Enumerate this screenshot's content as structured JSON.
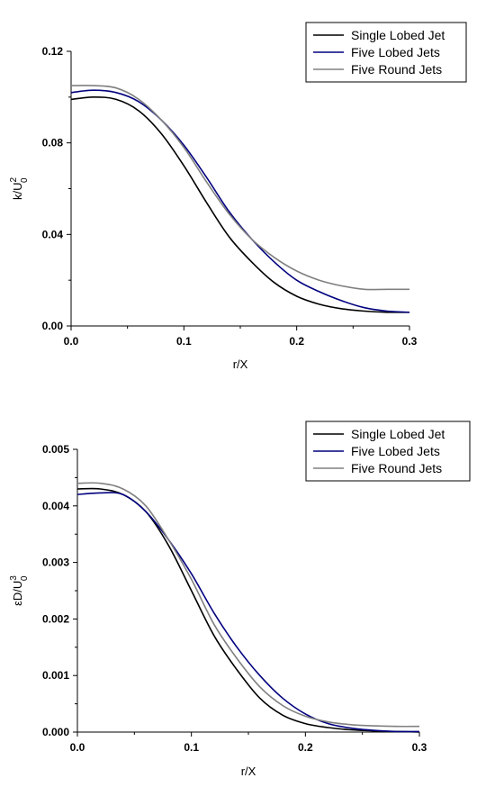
{
  "chart_data": [
    {
      "type": "line",
      "xlabel": "r/X",
      "ylabel_main": "k/U",
      "ylabel_sup": "2",
      "ylabel_sub": "0",
      "xlim": [
        0.0,
        0.3
      ],
      "ylim": [
        0.0,
        0.12
      ],
      "xticks": [
        0.0,
        0.1,
        0.2,
        0.3
      ],
      "xtick_labels": [
        "0.0",
        "0.1",
        "0.2",
        "0.3"
      ],
      "yticks": [
        0.0,
        0.04,
        0.08,
        0.12
      ],
      "ytick_labels": [
        "0.00",
        "0.04",
        "0.08",
        "0.12"
      ],
      "legend_position": "top-right",
      "grid": false,
      "series": [
        {
          "name": "Single Lobed Jet",
          "color": "#000000",
          "points": [
            [
              0.0,
              0.099
            ],
            [
              0.02,
              0.1
            ],
            [
              0.04,
              0.099
            ],
            [
              0.06,
              0.094
            ],
            [
              0.08,
              0.084
            ],
            [
              0.1,
              0.07
            ],
            [
              0.12,
              0.054
            ],
            [
              0.14,
              0.039
            ],
            [
              0.16,
              0.028
            ],
            [
              0.18,
              0.019
            ],
            [
              0.2,
              0.013
            ],
            [
              0.22,
              0.0095
            ],
            [
              0.24,
              0.0075
            ],
            [
              0.26,
              0.0065
            ],
            [
              0.28,
              0.006
            ],
            [
              0.3,
              0.006
            ]
          ]
        },
        {
          "name": "Five Lobed Jets",
          "color": "#00007f",
          "points": [
            [
              0.0,
              0.102
            ],
            [
              0.02,
              0.103
            ],
            [
              0.04,
              0.102
            ],
            [
              0.06,
              0.098
            ],
            [
              0.08,
              0.09
            ],
            [
              0.1,
              0.079
            ],
            [
              0.12,
              0.065
            ],
            [
              0.14,
              0.05
            ],
            [
              0.16,
              0.038
            ],
            [
              0.18,
              0.028
            ],
            [
              0.2,
              0.02
            ],
            [
              0.22,
              0.015
            ],
            [
              0.24,
              0.011
            ],
            [
              0.26,
              0.008
            ],
            [
              0.28,
              0.0065
            ],
            [
              0.3,
              0.006
            ]
          ]
        },
        {
          "name": "Five Round Jets",
          "color": "#808080",
          "points": [
            [
              0.0,
              0.105
            ],
            [
              0.02,
              0.105
            ],
            [
              0.04,
              0.104
            ],
            [
              0.06,
              0.099
            ],
            [
              0.08,
              0.09
            ],
            [
              0.1,
              0.078
            ],
            [
              0.12,
              0.063
            ],
            [
              0.14,
              0.049
            ],
            [
              0.16,
              0.038
            ],
            [
              0.18,
              0.03
            ],
            [
              0.2,
              0.024
            ],
            [
              0.22,
              0.02
            ],
            [
              0.24,
              0.0175
            ],
            [
              0.26,
              0.016
            ],
            [
              0.28,
              0.016
            ],
            [
              0.3,
              0.016
            ]
          ]
        }
      ]
    },
    {
      "type": "line",
      "xlabel": "r/X",
      "ylabel_main": "εD/U",
      "ylabel_sup": "3",
      "ylabel_sub": "0",
      "xlim": [
        0.0,
        0.3
      ],
      "ylim": [
        0.0,
        0.005
      ],
      "xticks": [
        0.0,
        0.1,
        0.2,
        0.3
      ],
      "xtick_labels": [
        "0.0",
        "0.1",
        "0.2",
        "0.3"
      ],
      "yticks": [
        0.0,
        0.001,
        0.002,
        0.003,
        0.004,
        0.005
      ],
      "ytick_labels": [
        "0.000",
        "0.001",
        "0.002",
        "0.003",
        "0.004",
        "0.005"
      ],
      "legend_position": "top-right",
      "grid": false,
      "series": [
        {
          "name": "Single Lobed Jet",
          "color": "#000000",
          "points": [
            [
              0.0,
              0.0043
            ],
            [
              0.02,
              0.0043
            ],
            [
              0.04,
              0.0042
            ],
            [
              0.06,
              0.0039
            ],
            [
              0.08,
              0.0033
            ],
            [
              0.1,
              0.0025
            ],
            [
              0.12,
              0.0017
            ],
            [
              0.14,
              0.0011
            ],
            [
              0.16,
              0.0006
            ],
            [
              0.18,
              0.0003
            ],
            [
              0.2,
              0.00015
            ],
            [
              0.22,
              8e-05
            ],
            [
              0.24,
              4e-05
            ],
            [
              0.26,
              2e-05
            ],
            [
              0.28,
              1e-05
            ],
            [
              0.3,
              0.0
            ]
          ]
        },
        {
          "name": "Five Lobed Jets",
          "color": "#00007f",
          "points": [
            [
              0.0,
              0.0042
            ],
            [
              0.02,
              0.00423
            ],
            [
              0.04,
              0.0042
            ],
            [
              0.06,
              0.0039
            ],
            [
              0.08,
              0.0034
            ],
            [
              0.1,
              0.0028
            ],
            [
              0.12,
              0.0021
            ],
            [
              0.14,
              0.0015
            ],
            [
              0.16,
              0.001
            ],
            [
              0.18,
              0.0006
            ],
            [
              0.2,
              0.00032
            ],
            [
              0.22,
              0.00015
            ],
            [
              0.24,
              7e-05
            ],
            [
              0.26,
              3e-05
            ],
            [
              0.28,
              1e-05
            ],
            [
              0.3,
              1e-05
            ]
          ]
        },
        {
          "name": "Five Round Jets",
          "color": "#808080",
          "points": [
            [
              0.0,
              0.0044
            ],
            [
              0.02,
              0.0044
            ],
            [
              0.04,
              0.0043
            ],
            [
              0.06,
              0.004
            ],
            [
              0.08,
              0.0034
            ],
            [
              0.1,
              0.0027
            ],
            [
              0.12,
              0.0019
            ],
            [
              0.14,
              0.0013
            ],
            [
              0.16,
              0.0008
            ],
            [
              0.18,
              0.00047
            ],
            [
              0.2,
              0.00028
            ],
            [
              0.22,
              0.00018
            ],
            [
              0.24,
              0.00013
            ],
            [
              0.26,
              0.00011
            ],
            [
              0.28,
              0.0001
            ],
            [
              0.3,
              0.0001
            ]
          ]
        }
      ]
    }
  ]
}
